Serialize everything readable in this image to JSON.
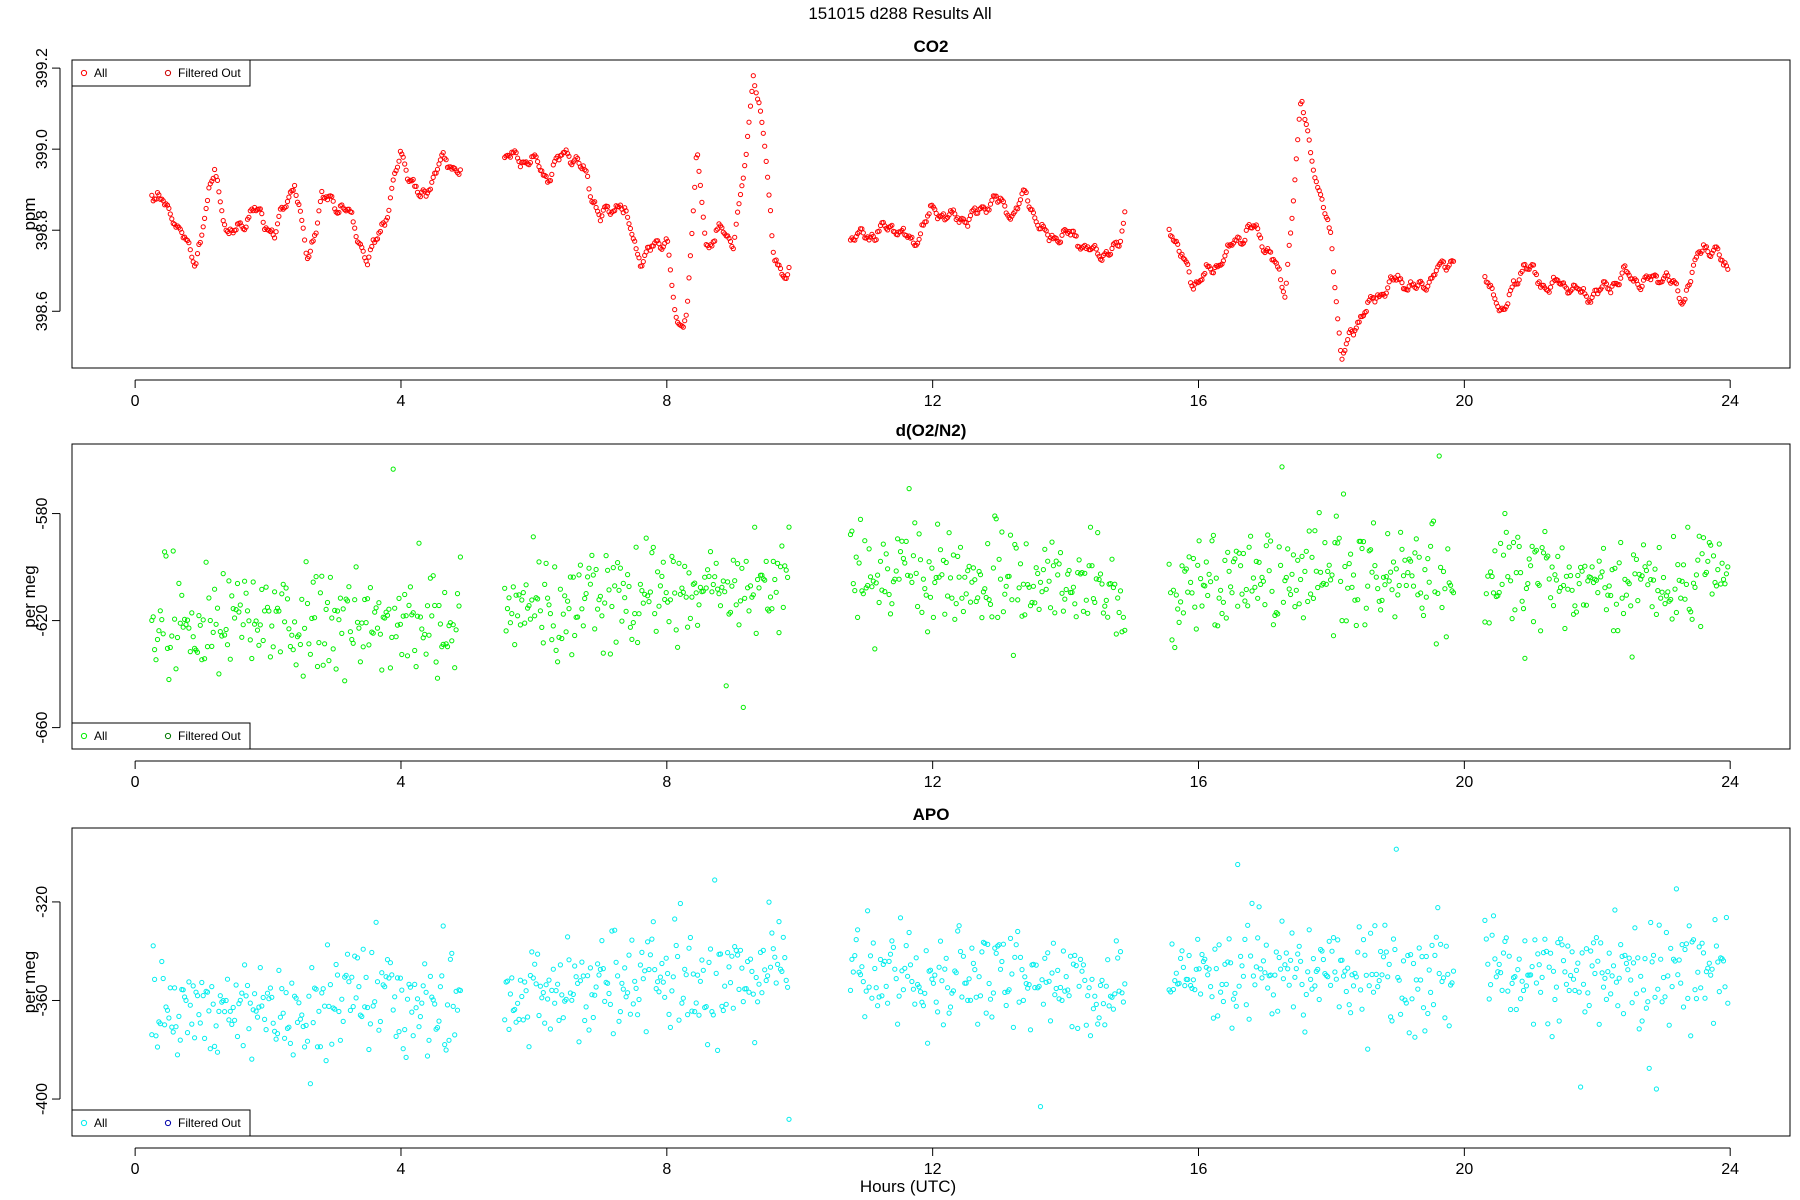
{
  "figure": {
    "title": "151015   d288   Results All",
    "xlabel": "Hours (UTC)"
  },
  "chart_data": [
    {
      "type": "scatter",
      "title": "CO2",
      "ylabel": "ppm",
      "xlim": [
        -0.95,
        24.9
      ],
      "ylim": [
        398.46,
        399.22
      ],
      "xticks": [
        0,
        4,
        8,
        12,
        16,
        20,
        24
      ],
      "xtick_labels": [
        "0",
        "4",
        "8",
        "12",
        "16",
        "20",
        "24"
      ],
      "yticks": [
        398.6,
        398.8,
        399.0,
        399.2
      ],
      "ytick_labels": [
        "398.6",
        "398.8",
        "399.0",
        "399.2"
      ],
      "legend": {
        "position": "top-left",
        "entries": [
          "All",
          "Filtered Out"
        ]
      },
      "series": [
        {
          "name": "All",
          "color": "#ff0000",
          "gaps": [
            [
              4.9,
              5.55
            ],
            [
              9.85,
              10.75
            ],
            [
              14.9,
              15.55
            ],
            [
              19.85,
              20.3
            ]
          ]
        },
        {
          "name": "Filtered Out",
          "color": "#cc0000",
          "x": [],
          "y": []
        }
      ],
      "anchors": [
        [
          0.25,
          398.9
        ],
        [
          0.6,
          398.83
        ],
        [
          0.9,
          398.72
        ],
        [
          1.2,
          398.95
        ],
        [
          1.4,
          398.78
        ],
        [
          1.8,
          398.85
        ],
        [
          2.1,
          398.79
        ],
        [
          2.4,
          398.92
        ],
        [
          2.6,
          398.72
        ],
        [
          2.8,
          398.88
        ],
        [
          3.2,
          398.85
        ],
        [
          3.5,
          398.72
        ],
        [
          3.8,
          398.85
        ],
        [
          4.0,
          398.99
        ],
        [
          4.3,
          398.87
        ],
        [
          4.6,
          398.97
        ],
        [
          4.9,
          398.95
        ],
        [
          5.6,
          398.98
        ],
        [
          6.0,
          398.97
        ],
        [
          6.2,
          398.93
        ],
        [
          6.5,
          399.0
        ],
        [
          6.8,
          398.93
        ],
        [
          7.0,
          398.83
        ],
        [
          7.3,
          398.87
        ],
        [
          7.6,
          398.73
        ],
        [
          8.0,
          398.78
        ],
        [
          8.15,
          398.55
        ],
        [
          8.3,
          398.6
        ],
        [
          8.45,
          398.98
        ],
        [
          8.6,
          398.76
        ],
        [
          8.8,
          398.8
        ],
        [
          9.0,
          398.77
        ],
        [
          9.2,
          398.98
        ],
        [
          9.3,
          399.2
        ],
        [
          9.45,
          399.05
        ],
        [
          9.6,
          398.75
        ],
        [
          9.8,
          398.68
        ],
        [
          10.8,
          398.78
        ],
        [
          11.1,
          398.79
        ],
        [
          11.4,
          398.81
        ],
        [
          11.7,
          398.77
        ],
        [
          12.0,
          398.85
        ],
        [
          12.3,
          398.83
        ],
        [
          12.6,
          398.83
        ],
        [
          12.9,
          398.88
        ],
        [
          13.2,
          398.84
        ],
        [
          13.4,
          398.89
        ],
        [
          13.7,
          398.78
        ],
        [
          14.1,
          398.79
        ],
        [
          14.4,
          398.74
        ],
        [
          14.8,
          398.75
        ],
        [
          14.9,
          398.86
        ],
        [
          15.6,
          398.8
        ],
        [
          15.9,
          398.67
        ],
        [
          16.2,
          398.7
        ],
        [
          16.5,
          398.76
        ],
        [
          16.8,
          398.81
        ],
        [
          17.1,
          398.74
        ],
        [
          17.3,
          398.64
        ],
        [
          17.55,
          399.12
        ],
        [
          17.8,
          398.9
        ],
        [
          18.0,
          398.78
        ],
        [
          18.15,
          398.48
        ],
        [
          18.4,
          398.58
        ],
        [
          18.7,
          398.64
        ],
        [
          19.0,
          398.68
        ],
        [
          19.3,
          398.65
        ],
        [
          19.6,
          398.7
        ],
        [
          19.85,
          398.73
        ],
        [
          20.3,
          398.68
        ],
        [
          20.6,
          398.6
        ],
        [
          20.9,
          398.72
        ],
        [
          21.2,
          398.66
        ],
        [
          21.5,
          398.67
        ],
        [
          21.8,
          398.64
        ],
        [
          22.1,
          398.65
        ],
        [
          22.4,
          398.69
        ],
        [
          22.7,
          398.67
        ],
        [
          23.0,
          398.69
        ],
        [
          23.3,
          398.63
        ],
        [
          23.6,
          398.77
        ],
        [
          23.95,
          398.71
        ]
      ]
    },
    {
      "type": "scatter",
      "title": "d(O2/N2)",
      "ylabel": "per meg",
      "xlim": [
        -0.95,
        24.9
      ],
      "ylim": [
        -668.0,
        -554.0
      ],
      "xticks": [
        0,
        4,
        8,
        12,
        16,
        20,
        24
      ],
      "xtick_labels": [
        "0",
        "4",
        "8",
        "12",
        "16",
        "20",
        "24"
      ],
      "yticks": [
        -660,
        -620,
        -580
      ],
      "ytick_labels": [
        "-660",
        "-620",
        "-580"
      ],
      "legend": {
        "position": "bottom-left",
        "entries": [
          "All",
          "Filtered Out"
        ]
      },
      "series": [
        {
          "name": "All",
          "color": "#00ee00",
          "gaps": [
            [
              4.9,
              5.55
            ],
            [
              9.85,
              10.75
            ],
            [
              14.9,
              15.55
            ],
            [
              19.85,
              20.3
            ]
          ]
        },
        {
          "name": "Filtered Out",
          "color": "#007700",
          "x": [],
          "y": []
        }
      ],
      "mean_trend": [
        [
          0.3,
          -620
        ],
        [
          4.9,
          -620
        ],
        [
          5.6,
          -616
        ],
        [
          9.85,
          -604
        ],
        [
          10.75,
          -604
        ],
        [
          14.9,
          -608
        ],
        [
          15.6,
          -604
        ],
        [
          19.85,
          -604
        ],
        [
          20.3,
          -604
        ],
        [
          23.95,
          -604
        ]
      ]
    },
    {
      "type": "scatter",
      "title": "APO",
      "ylabel": "per meg",
      "xlim": [
        -0.95,
        24.9
      ],
      "ylim": [
        -415.0,
        -290.0
      ],
      "xticks": [
        0,
        4,
        8,
        12,
        16,
        20,
        24
      ],
      "xtick_labels": [
        "0",
        "4",
        "8",
        "12",
        "16",
        "20",
        "24"
      ],
      "yticks": [
        -400,
        -360,
        -320
      ],
      "ytick_labels": [
        "-400",
        "-360",
        "-320"
      ],
      "legend": {
        "position": "bottom-left",
        "entries": [
          "All",
          "Filtered Out"
        ]
      },
      "series": [
        {
          "name": "All",
          "color": "#00eeee",
          "gaps": [
            [
              4.9,
              5.55
            ],
            [
              9.85,
              10.75
            ],
            [
              14.9,
              15.55
            ],
            [
              19.85,
              20.3
            ]
          ]
        },
        {
          "name": "Filtered Out",
          "color": "#0000aa",
          "x": [],
          "y": []
        }
      ],
      "mean_trend": [
        [
          0.3,
          -362
        ],
        [
          4.9,
          -362
        ],
        [
          5.6,
          -358
        ],
        [
          9.85,
          -348
        ],
        [
          10.75,
          -348
        ],
        [
          14.9,
          -352
        ],
        [
          15.6,
          -348
        ],
        [
          19.85,
          -348
        ],
        [
          20.3,
          -348
        ],
        [
          23.95,
          -348
        ]
      ]
    }
  ]
}
